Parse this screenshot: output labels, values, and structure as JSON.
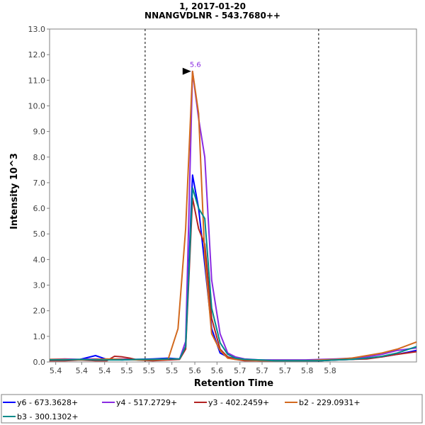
{
  "chart_data": {
    "type": "line",
    "title": "1, 2017-01-20",
    "subtitle": "NNANGVDLNR - 543.7680++",
    "xlabel": "Retention Time",
    "ylabel": "Intensity 10^3",
    "xlim": [
      5.385,
      5.865
    ],
    "ylim": [
      0,
      13
    ],
    "x_ticks": [
      "5.4",
      "5.4",
      "5.4",
      "5.5",
      "5.5",
      "5.5",
      "5.6",
      "5.6",
      "5.7",
      "5.7",
      "5.7",
      "5.8",
      "5.8"
    ],
    "x_tick_values": [
      5.393,
      5.427,
      5.457,
      5.486,
      5.515,
      5.545,
      5.575,
      5.604,
      5.634,
      5.663,
      5.693,
      5.722,
      5.752
    ],
    "y_ticks": [
      "0.0",
      "1.0",
      "2.0",
      "3.0",
      "4.0",
      "5.0",
      "6.0",
      "7.0",
      "8.0",
      "9.0",
      "10.0",
      "11.0",
      "12.0",
      "13.0"
    ],
    "boundaries": [
      5.51,
      5.737
    ],
    "peak_annotation": {
      "label": "5.6",
      "x": 5.572,
      "y": 11.35
    },
    "series": [
      {
        "name": "y6 - 673.3628+",
        "color": "#0000ff",
        "points": [
          [
            5.385,
            0.08
          ],
          [
            5.405,
            0.08
          ],
          [
            5.425,
            0.1
          ],
          [
            5.445,
            0.25
          ],
          [
            5.46,
            0.1
          ],
          [
            5.48,
            0.08
          ],
          [
            5.5,
            0.1
          ],
          [
            5.52,
            0.12
          ],
          [
            5.54,
            0.15
          ],
          [
            5.555,
            0.12
          ],
          [
            5.563,
            0.6
          ],
          [
            5.572,
            7.3
          ],
          [
            5.58,
            6.0
          ],
          [
            5.588,
            3.8
          ],
          [
            5.597,
            1.3
          ],
          [
            5.608,
            0.35
          ],
          [
            5.618,
            0.2
          ],
          [
            5.628,
            0.12
          ],
          [
            5.64,
            0.08
          ],
          [
            5.66,
            0.05
          ],
          [
            5.68,
            0.05
          ],
          [
            5.7,
            0.05
          ],
          [
            5.72,
            0.05
          ],
          [
            5.74,
            0.05
          ],
          [
            5.76,
            0.08
          ],
          [
            5.78,
            0.1
          ],
          [
            5.8,
            0.15
          ],
          [
            5.82,
            0.2
          ],
          [
            5.84,
            0.3
          ],
          [
            5.865,
            0.45
          ]
        ]
      },
      {
        "name": "y4 - 517.2729+",
        "color": "#8a2be2",
        "points": [
          [
            5.385,
            0.1
          ],
          [
            5.405,
            0.12
          ],
          [
            5.425,
            0.1
          ],
          [
            5.445,
            0.12
          ],
          [
            5.46,
            0.1
          ],
          [
            5.48,
            0.12
          ],
          [
            5.5,
            0.1
          ],
          [
            5.52,
            0.1
          ],
          [
            5.54,
            0.12
          ],
          [
            5.555,
            0.12
          ],
          [
            5.563,
            0.8
          ],
          [
            5.572,
            11.35
          ],
          [
            5.58,
            9.5
          ],
          [
            5.588,
            8.0
          ],
          [
            5.597,
            3.2
          ],
          [
            5.608,
            1.1
          ],
          [
            5.618,
            0.35
          ],
          [
            5.628,
            0.2
          ],
          [
            5.64,
            0.12
          ],
          [
            5.66,
            0.08
          ],
          [
            5.68,
            0.08
          ],
          [
            5.7,
            0.08
          ],
          [
            5.72,
            0.08
          ],
          [
            5.74,
            0.1
          ],
          [
            5.76,
            0.12
          ],
          [
            5.78,
            0.15
          ],
          [
            5.8,
            0.2
          ],
          [
            5.82,
            0.3
          ],
          [
            5.84,
            0.45
          ],
          [
            5.865,
            0.55
          ]
        ]
      },
      {
        "name": "y3 - 402.2459+",
        "color": "#b22222",
        "points": [
          [
            5.385,
            0.05
          ],
          [
            5.405,
            0.05
          ],
          [
            5.425,
            0.08
          ],
          [
            5.445,
            0.05
          ],
          [
            5.46,
            0.05
          ],
          [
            5.47,
            0.22
          ],
          [
            5.48,
            0.2
          ],
          [
            5.49,
            0.15
          ],
          [
            5.5,
            0.08
          ],
          [
            5.52,
            0.05
          ],
          [
            5.54,
            0.08
          ],
          [
            5.555,
            0.1
          ],
          [
            5.563,
            0.5
          ],
          [
            5.572,
            6.4
          ],
          [
            5.58,
            5.2
          ],
          [
            5.588,
            4.6
          ],
          [
            5.597,
            1.7
          ],
          [
            5.608,
            0.5
          ],
          [
            5.618,
            0.2
          ],
          [
            5.628,
            0.1
          ],
          [
            5.64,
            0.05
          ],
          [
            5.66,
            0.05
          ],
          [
            5.68,
            0.05
          ],
          [
            5.7,
            0.05
          ],
          [
            5.72,
            0.05
          ],
          [
            5.74,
            0.05
          ],
          [
            5.76,
            0.08
          ],
          [
            5.78,
            0.1
          ],
          [
            5.8,
            0.12
          ],
          [
            5.82,
            0.2
          ],
          [
            5.84,
            0.3
          ],
          [
            5.865,
            0.4
          ]
        ]
      },
      {
        "name": "b2 - 229.0931+",
        "color": "#d2691e",
        "points": [
          [
            5.385,
            0.1
          ],
          [
            5.405,
            0.1
          ],
          [
            5.425,
            0.08
          ],
          [
            5.445,
            0.1
          ],
          [
            5.46,
            0.12
          ],
          [
            5.48,
            0.1
          ],
          [
            5.5,
            0.08
          ],
          [
            5.52,
            0.08
          ],
          [
            5.54,
            0.1
          ],
          [
            5.553,
            1.3
          ],
          [
            5.563,
            5.2
          ],
          [
            5.572,
            11.35
          ],
          [
            5.58,
            9.7
          ],
          [
            5.588,
            4.1
          ],
          [
            5.597,
            1.1
          ],
          [
            5.608,
            0.45
          ],
          [
            5.618,
            0.15
          ],
          [
            5.628,
            0.1
          ],
          [
            5.64,
            0.08
          ],
          [
            5.66,
            0.05
          ],
          [
            5.68,
            0.05
          ],
          [
            5.7,
            0.05
          ],
          [
            5.72,
            0.05
          ],
          [
            5.74,
            0.08
          ],
          [
            5.76,
            0.1
          ],
          [
            5.78,
            0.15
          ],
          [
            5.8,
            0.25
          ],
          [
            5.82,
            0.35
          ],
          [
            5.84,
            0.5
          ],
          [
            5.865,
            0.78
          ]
        ]
      },
      {
        "name": "b3 - 300.1302+",
        "color": "#008b8b",
        "points": [
          [
            5.385,
            0.08
          ],
          [
            5.405,
            0.08
          ],
          [
            5.425,
            0.1
          ],
          [
            5.445,
            0.08
          ],
          [
            5.46,
            0.08
          ],
          [
            5.48,
            0.08
          ],
          [
            5.5,
            0.1
          ],
          [
            5.52,
            0.1
          ],
          [
            5.54,
            0.12
          ],
          [
            5.555,
            0.12
          ],
          [
            5.563,
            0.6
          ],
          [
            5.572,
            6.8
          ],
          [
            5.58,
            6.0
          ],
          [
            5.588,
            5.6
          ],
          [
            5.597,
            2.1
          ],
          [
            5.608,
            0.75
          ],
          [
            5.618,
            0.3
          ],
          [
            5.628,
            0.15
          ],
          [
            5.64,
            0.1
          ],
          [
            5.66,
            0.08
          ],
          [
            5.68,
            0.05
          ],
          [
            5.7,
            0.05
          ],
          [
            5.72,
            0.05
          ],
          [
            5.74,
            0.05
          ],
          [
            5.76,
            0.08
          ],
          [
            5.78,
            0.1
          ],
          [
            5.8,
            0.15
          ],
          [
            5.82,
            0.22
          ],
          [
            5.84,
            0.35
          ],
          [
            5.865,
            0.6
          ]
        ]
      }
    ]
  }
}
